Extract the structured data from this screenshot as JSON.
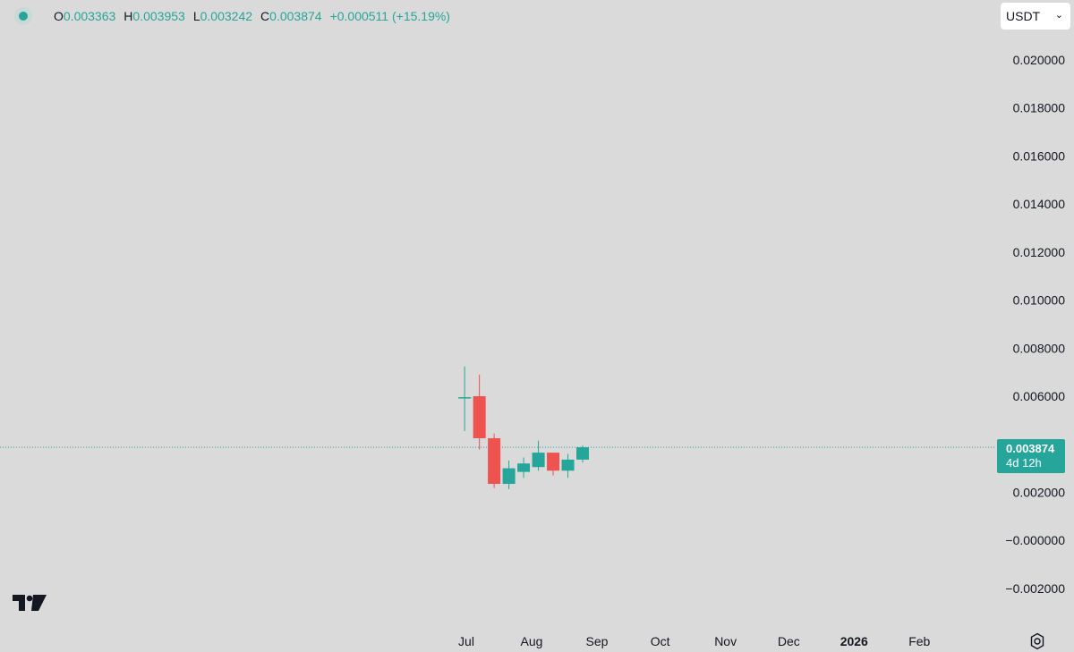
{
  "legend": {
    "open_key": "O",
    "open_value": "0.003363",
    "high_key": "H",
    "high_value": "0.003953",
    "low_key": "L",
    "low_value": "0.003242",
    "close_key": "C",
    "close_value": "0.003874",
    "change": "+0.000511 (+15.19%)"
  },
  "currency_select": {
    "value": "USDT",
    "icon": "chevron-down-icon"
  },
  "last_price": {
    "price": "0.003874",
    "countdown": "4d 12h"
  },
  "colors": {
    "up": "#26a69a",
    "down": "#ef5350",
    "background": "#dadada",
    "axis_text": "#131722"
  },
  "chart_data": {
    "type": "candlestick",
    "y_axis": {
      "ticks": [
        0.02,
        0.018,
        0.016,
        0.014,
        0.012,
        0.01,
        0.008,
        0.006,
        0.002,
        0.0,
        -0.002
      ],
      "tick_labels": [
        "0.020000",
        "0.018000",
        "0.016000",
        "0.014000",
        "0.012000",
        "0.010000",
        "0.008000",
        "0.006000",
        "0.002000",
        "−0.000000",
        "−0.002000"
      ]
    },
    "x_axis": {
      "labels": [
        {
          "text": "Jul",
          "date": "2025-07-01",
          "bold": false
        },
        {
          "text": "Aug",
          "date": "2025-08-01",
          "bold": false
        },
        {
          "text": "Sep",
          "date": "2025-09-01",
          "bold": false
        },
        {
          "text": "Oct",
          "date": "2025-10-01",
          "bold": false
        },
        {
          "text": "Nov",
          "date": "2025-11-01",
          "bold": false
        },
        {
          "text": "Dec",
          "date": "2025-12-01",
          "bold": false
        },
        {
          "text": "2026",
          "date": "2026-01-01",
          "bold": true
        },
        {
          "text": "Feb",
          "date": "2026-02-01",
          "bold": false
        }
      ]
    },
    "candles": [
      {
        "date": "2025-06-30",
        "open": 0.00595,
        "high": 0.00724,
        "low": 0.00455,
        "close": 0.00596
      },
      {
        "date": "2025-07-07",
        "open": 0.006,
        "high": 0.0069,
        "low": 0.00378,
        "close": 0.00425
      },
      {
        "date": "2025-07-14",
        "open": 0.00425,
        "high": 0.00445,
        "low": 0.00218,
        "close": 0.00235
      },
      {
        "date": "2025-07-21",
        "open": 0.00235,
        "high": 0.00332,
        "low": 0.00213,
        "close": 0.003
      },
      {
        "date": "2025-07-28",
        "open": 0.00285,
        "high": 0.00345,
        "low": 0.0026,
        "close": 0.0032
      },
      {
        "date": "2025-08-04",
        "open": 0.00305,
        "high": 0.00415,
        "low": 0.0029,
        "close": 0.00365
      },
      {
        "date": "2025-08-11",
        "open": 0.00365,
        "high": 0.00365,
        "low": 0.0027,
        "close": 0.0029
      },
      {
        "date": "2025-08-18",
        "open": 0.0029,
        "high": 0.0036,
        "low": 0.0026,
        "close": 0.00336
      },
      {
        "date": "2025-08-25",
        "open": 0.00336,
        "high": 0.00395,
        "low": 0.00324,
        "close": 0.003874
      }
    ],
    "last_price": 0.003874
  }
}
